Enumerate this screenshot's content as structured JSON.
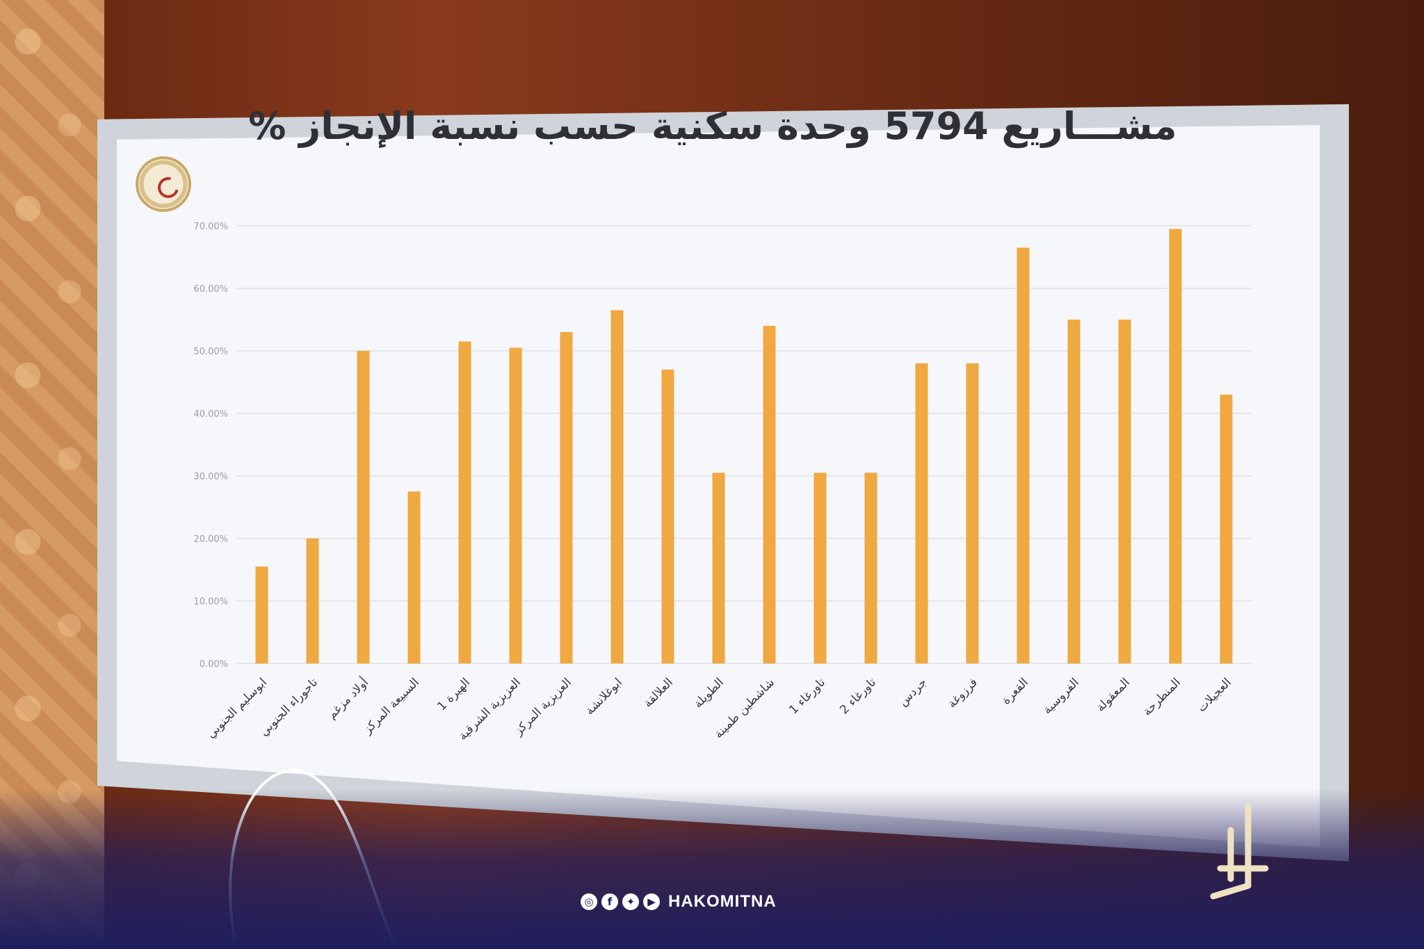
{
  "title": {
    "line1": "مشـــاريع 5794 وحدة سكنية حسب نسبة الإنجاز %"
  },
  "chart_data": {
    "type": "bar",
    "title": "مشـــاريع 5794 وحدة سكنية حسب نسبة الإنجاز %",
    "xlabel": "",
    "ylabel": "",
    "ylim": [
      0,
      70
    ],
    "y_ticks": [
      "0.00%",
      "10.00%",
      "20.00%",
      "30.00%",
      "40.00%",
      "50.00%",
      "60.00%",
      "70.00%"
    ],
    "grid": true,
    "categories": [
      "ابوسليم الجنوبي",
      "تاجوراء الجنوبي",
      "أولاد مزغم",
      "السبيعة المركز",
      "الهيرة 1",
      "العزيزية الشرقية",
      "العزيزية المركز",
      "ابوغلانشة",
      "العلالقة",
      "الطويلة",
      "شاشطين طمينة",
      "تاورغاء 1",
      "تاورغاء 2",
      "جردس",
      "فرزوغة",
      "القعرة",
      "الفروسية",
      "المعقولة",
      "المنطرحة",
      "العجيلات"
    ],
    "values": [
      15.5,
      20,
      50,
      27.5,
      51.5,
      50.5,
      53,
      56.5,
      47,
      30.5,
      54,
      30.5,
      30.5,
      48,
      48,
      66.5,
      55,
      55,
      69.5,
      43
    ],
    "bar_color": "#f0a840"
  },
  "footer": {
    "handle": "HAKOMITNA",
    "icons": [
      "instagram-icon",
      "facebook-icon",
      "twitter-icon",
      "youtube-icon"
    ]
  },
  "colors": {
    "bar": "#f0a840",
    "title": "#2f2f36",
    "footer_bg": "#1e1e5e"
  }
}
